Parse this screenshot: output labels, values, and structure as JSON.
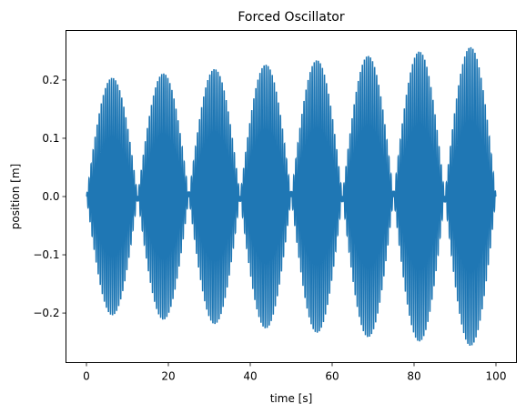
{
  "chart_data": {
    "type": "line",
    "title": "Forced Oscillator",
    "xlabel": "time [s]",
    "ylabel": "position [m]",
    "xlim": [
      -5,
      105
    ],
    "ylim": [
      -0.285,
      0.285
    ],
    "xticks": [
      0,
      20,
      40,
      60,
      80,
      100
    ],
    "xtick_labels": [
      "0",
      "20",
      "40",
      "60",
      "80",
      "100"
    ],
    "yticks": [
      -0.2,
      -0.1,
      0.0,
      0.1,
      0.2
    ],
    "ytick_labels": [
      "−0.2",
      "−0.1",
      "0.0",
      "0.1",
      "0.2"
    ],
    "grid": false,
    "legend": "none",
    "colors": {
      "series": "#1f77b4"
    },
    "series": [
      {
        "color": "#1f77b4",
        "model": {
          "form": "A(t) * sin(pi*t/12.5) * sin(2*pi*t/0.5)",
          "amplitude_t0": 0.2,
          "amplitude_t100": 0.26,
          "beat_period_s": 12.5,
          "carrier_period_s": 0.5
        },
        "x_range": [
          0,
          100
        ],
        "envelope_peaks": [
          {
            "t": 6.25,
            "position": 0.203
          },
          {
            "t": 18.75,
            "position": 0.21
          },
          {
            "t": 31.25,
            "position": 0.218
          },
          {
            "t": 43.75,
            "position": 0.225
          },
          {
            "t": 56.25,
            "position": 0.233
          },
          {
            "t": 68.75,
            "position": 0.241
          },
          {
            "t": 81.25,
            "position": 0.249
          },
          {
            "t": 93.75,
            "position": 0.256
          }
        ]
      }
    ]
  }
}
